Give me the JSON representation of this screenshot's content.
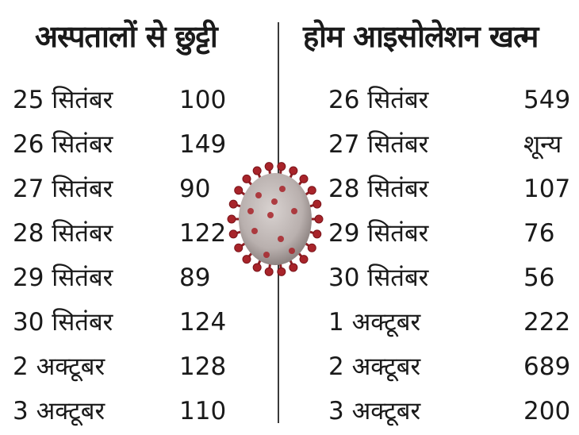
{
  "left": {
    "title": "अस्पतालों से छुट्टी",
    "rows": [
      {
        "date": "25 सितंबर",
        "value": "100"
      },
      {
        "date": "26 सितंबर",
        "value": "149"
      },
      {
        "date": "27 सितंबर",
        "value": "90"
      },
      {
        "date": "28 सितंबर",
        "value": "122"
      },
      {
        "date": "29 सितंबर",
        "value": "89"
      },
      {
        "date": "30 सितंबर",
        "value": "124"
      },
      {
        "date": "2 अक्टूबर",
        "value": "128"
      },
      {
        "date": "3 अक्टूबर",
        "value": "110"
      }
    ]
  },
  "right": {
    "title": "होम आइसोलेशन खत्म",
    "rows": [
      {
        "date": "26 सितंबर",
        "value": "549"
      },
      {
        "date": "27 सितंबर",
        "value": "शून्य"
      },
      {
        "date": "28 सितंबर",
        "value": "107"
      },
      {
        "date": "29 सितंबर",
        "value": "76"
      },
      {
        "date": "30 सितंबर",
        "value": "56"
      },
      {
        "date": "1 अक्टूबर",
        "value": "222"
      },
      {
        "date": "2 अक्टूबर",
        "value": "689"
      },
      {
        "date": "3 अक्टूबर",
        "value": "200"
      }
    ]
  },
  "colors": {
    "virus_body": "#b9b0ae",
    "virus_spike": "#a8242a",
    "text": "#1a1a1a"
  },
  "icons": {
    "center_image": "coronavirus-icon"
  }
}
